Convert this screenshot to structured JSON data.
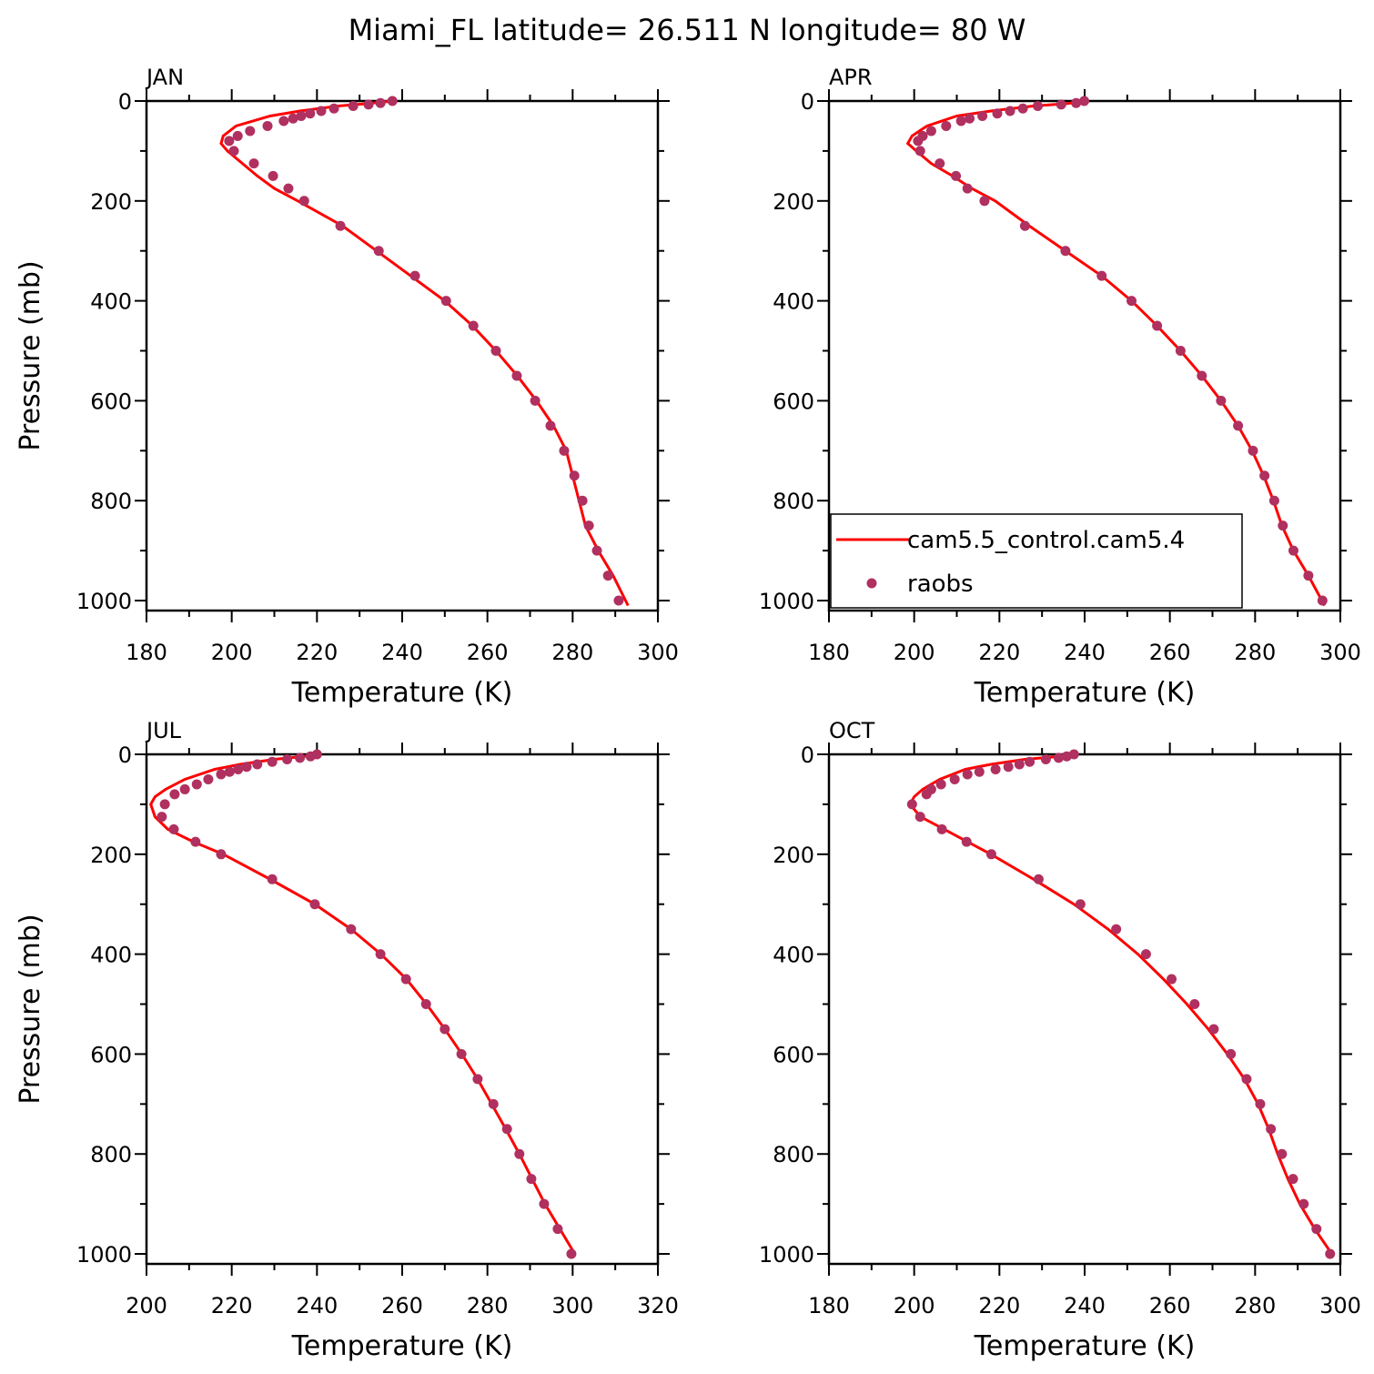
{
  "title": "Miami_FL  latitude= 26.511 N longitude= 80 W",
  "chart_data": [
    {
      "type": "line",
      "title": "JAN",
      "xlabel": "Temperature (K)",
      "ylabel": "Pressure (mb)",
      "xlim": [
        180,
        300
      ],
      "xticks": [
        180,
        200,
        220,
        240,
        260,
        280,
        300
      ],
      "xticks_minor": [
        190,
        210,
        230,
        250,
        270,
        290
      ],
      "ylim": [
        0,
        1020
      ],
      "yticks": [
        0,
        200,
        400,
        600,
        800,
        1000
      ],
      "yticks_minor": [
        100,
        300,
        500,
        700,
        900
      ],
      "y_inverted": true,
      "series": [
        {
          "color": "#ff0000",
          "style": "line",
          "x": [
            238,
            232,
            225,
            216,
            209,
            201,
            198,
            197.5,
            199,
            202.5,
            206,
            210,
            215.5,
            226,
            234,
            242,
            250,
            256.5,
            262,
            267,
            271.5,
            275.5,
            278.5,
            280,
            281.5,
            283,
            286,
            289.5,
            293
          ],
          "y": [
            0,
            5,
            10,
            20,
            30,
            50,
            70,
            85,
            100,
            125,
            150,
            175,
            200,
            250,
            300,
            350,
            400,
            450,
            500,
            550,
            600,
            650,
            700,
            750,
            800,
            850,
            900,
            950,
            1010
          ]
        },
        {
          "color": "#b03060",
          "style": "markers",
          "x": [
            237.7,
            234.9,
            232.1,
            228.5,
            224.0,
            221.0,
            218.4,
            216.3,
            214.4,
            212.2,
            208.4,
            204.3,
            201.4,
            199.4,
            200.5,
            205.2,
            209.7,
            213.3,
            217.0,
            225.5,
            234.5,
            243.0,
            250.3,
            256.7,
            262.0,
            266.9,
            271.2,
            274.8,
            278.0,
            280.4,
            282.3,
            283.8,
            285.7,
            288.3,
            290.8
          ],
          "y": [
            0,
            4,
            7,
            10,
            15,
            20,
            25,
            30,
            35,
            40,
            50,
            60,
            70,
            80,
            100,
            125,
            150,
            175,
            200,
            250,
            300,
            350,
            400,
            450,
            500,
            550,
            600,
            650,
            700,
            750,
            800,
            850,
            900,
            950,
            1000
          ]
        }
      ]
    },
    {
      "type": "line",
      "title": "APR",
      "xlabel": "Temperature (K)",
      "legend": "lower left",
      "xlim": [
        180,
        300
      ],
      "xticks": [
        180,
        200,
        220,
        240,
        260,
        280,
        300
      ],
      "xticks_minor": [
        190,
        210,
        230,
        250,
        270,
        290
      ],
      "ylim": [
        0,
        1020
      ],
      "yticks": [
        0,
        200,
        400,
        600,
        800,
        1000
      ],
      "yticks_minor": [
        100,
        300,
        500,
        700,
        900
      ],
      "y_inverted": true,
      "series": [
        {
          "name": "cam5.5_control.cam5.4",
          "color": "#ff0000",
          "style": "line",
          "x": [
            240,
            236,
            228,
            218,
            210,
            203,
            199.5,
            198.5,
            200.5,
            204,
            209,
            213.5,
            219,
            227,
            235.5,
            244,
            251,
            257,
            262.5,
            267.5,
            272,
            276,
            279.3,
            282,
            284.3,
            286.3,
            289,
            292.5,
            296.3
          ],
          "y": [
            0,
            5,
            10,
            20,
            30,
            50,
            70,
            85,
            100,
            125,
            150,
            175,
            200,
            250,
            300,
            350,
            400,
            450,
            500,
            550,
            600,
            650,
            700,
            750,
            800,
            850,
            900,
            950,
            1010
          ]
        },
        {
          "name": "raobs",
          "color": "#b03060",
          "style": "markers",
          "x": [
            239.9,
            238,
            234.5,
            229,
            225.5,
            222.5,
            219.5,
            216,
            213,
            211,
            207.5,
            204,
            202,
            200.9,
            201.4,
            206,
            209.8,
            212.5,
            216.5,
            226,
            235.5,
            244,
            251,
            257,
            262.5,
            267.5,
            272,
            276,
            279.5,
            282.2,
            284.5,
            286.5,
            289,
            292.5,
            295.8
          ],
          "y": [
            0,
            4,
            7,
            10,
            15,
            20,
            25,
            30,
            35,
            40,
            50,
            60,
            70,
            80,
            100,
            125,
            150,
            175,
            200,
            250,
            300,
            350,
            400,
            450,
            500,
            550,
            600,
            650,
            700,
            750,
            800,
            850,
            900,
            950,
            1000
          ]
        }
      ]
    },
    {
      "type": "line",
      "title": "JUL",
      "xlabel": "Temperature (K)",
      "ylabel": "Pressure (mb)",
      "xlim": [
        200,
        320
      ],
      "xticks": [
        200,
        220,
        240,
        260,
        280,
        300,
        320
      ],
      "xticks_minor": [
        210,
        230,
        250,
        270,
        290,
        310
      ],
      "ylim": [
        0,
        1020
      ],
      "yticks": [
        0,
        200,
        400,
        600,
        800,
        1000
      ],
      "yticks_minor": [
        100,
        300,
        500,
        700,
        900
      ],
      "y_inverted": true,
      "series": [
        {
          "color": "#ff0000",
          "style": "line",
          "x": [
            241,
            236,
            230,
            222,
            216,
            209,
            204.5,
            202,
            201,
            202,
            205,
            211,
            218,
            229,
            239.5,
            248,
            255,
            261,
            265.7,
            270,
            274,
            277.7,
            281,
            284.3,
            287.5,
            290.5,
            293.5,
            297,
            300.5
          ],
          "y": [
            0,
            5,
            10,
            20,
            30,
            50,
            70,
            85,
            100,
            125,
            150,
            175,
            200,
            250,
            300,
            350,
            400,
            450,
            500,
            550,
            600,
            650,
            700,
            750,
            800,
            850,
            900,
            950,
            1000
          ]
        },
        {
          "color": "#b03060",
          "style": "markers",
          "x": [
            240,
            238.5,
            236,
            233,
            229.5,
            226,
            223.5,
            221.5,
            219.5,
            217.5,
            214.5,
            211.8,
            209,
            206.6,
            204.3,
            203.6,
            206.4,
            211.5,
            217.5,
            229.5,
            239.5,
            248,
            254.9,
            260.9,
            265.6,
            270,
            273.9,
            277.7,
            281.4,
            284.6,
            287.5,
            290.3,
            293.3,
            296.5,
            299.7
          ],
          "y": [
            0,
            4,
            7,
            10,
            15,
            20,
            25,
            30,
            35,
            40,
            50,
            60,
            70,
            80,
            100,
            125,
            150,
            175,
            200,
            250,
            300,
            350,
            400,
            450,
            500,
            550,
            600,
            650,
            700,
            750,
            800,
            850,
            900,
            950,
            1000
          ]
        }
      ]
    },
    {
      "type": "line",
      "title": "OCT",
      "xlabel": "Temperature (K)",
      "xlim": [
        180,
        300
      ],
      "xticks": [
        180,
        200,
        220,
        240,
        260,
        280,
        300
      ],
      "xticks_minor": [
        190,
        210,
        230,
        250,
        270,
        290
      ],
      "ylim": [
        0,
        1020
      ],
      "yticks": [
        0,
        200,
        400,
        600,
        800,
        1000
      ],
      "yticks_minor": [
        100,
        300,
        500,
        700,
        900
      ],
      "y_inverted": true,
      "series": [
        {
          "color": "#ff0000",
          "style": "line",
          "x": [
            238,
            233,
            226,
            218,
            212,
            206,
            202,
            200,
            199,
            201.5,
            207,
            212.5,
            218,
            228,
            237.5,
            245.5,
            252.5,
            258.5,
            264,
            269,
            273.5,
            277.5,
            280.7,
            283.2,
            285.3,
            287.7,
            290.5,
            294,
            298
          ],
          "y": [
            0,
            5,
            10,
            20,
            30,
            50,
            70,
            85,
            100,
            125,
            150,
            175,
            200,
            250,
            300,
            350,
            400,
            450,
            500,
            550,
            600,
            650,
            700,
            750,
            800,
            850,
            900,
            950,
            1000
          ]
        },
        {
          "color": "#b03060",
          "style": "markers",
          "x": [
            237.5,
            235.8,
            233.9,
            230.9,
            227.1,
            224.7,
            222.1,
            219.1,
            215.3,
            212.5,
            209.5,
            206.3,
            204,
            202.9,
            199.5,
            201.4,
            206.5,
            212.3,
            218.1,
            229.2,
            239,
            247.4,
            254.4,
            260.4,
            265.8,
            270.3,
            274.3,
            278,
            281.2,
            283.7,
            286.3,
            288.9,
            291.4,
            294.4,
            297.6
          ],
          "y": [
            0,
            4,
            7,
            10,
            15,
            20,
            25,
            30,
            35,
            40,
            50,
            60,
            70,
            80,
            100,
            125,
            150,
            175,
            200,
            250,
            300,
            350,
            400,
            450,
            500,
            550,
            600,
            650,
            700,
            750,
            800,
            850,
            900,
            950,
            1000
          ]
        }
      ]
    }
  ]
}
